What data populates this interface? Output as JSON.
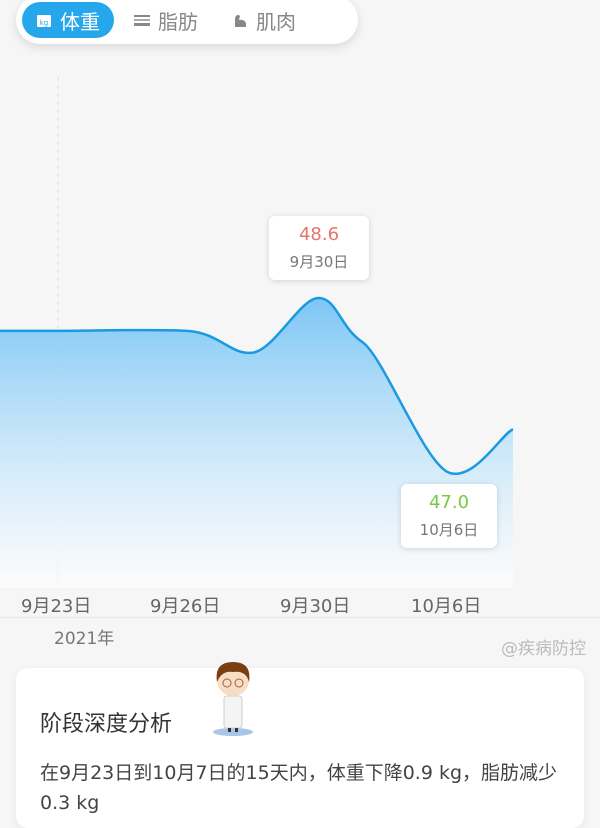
{
  "tabs": [
    {
      "label": "体重",
      "icon": "weight-kg-icon",
      "active": true
    },
    {
      "label": "脂肪",
      "icon": "fat-icon",
      "active": false
    },
    {
      "label": "肌肉",
      "icon": "muscle-icon",
      "active": false
    }
  ],
  "colors": {
    "accent": "#26a7ec",
    "line": "#1a9ae0",
    "high": "#e8736d",
    "low": "#7ac943"
  },
  "chart_data": {
    "type": "area",
    "x_ticks": [
      "9月23日",
      "9月26日",
      "9月30日",
      "10月6日"
    ],
    "year_label": "2021年",
    "points": [
      {
        "date": "9-23",
        "value": 48.3
      },
      {
        "date": "9-26",
        "value": 48.3
      },
      {
        "date": "9-28",
        "value": 48.1
      },
      {
        "date": "9-30",
        "value": 48.6
      },
      {
        "date": "10-2",
        "value": 48.2
      },
      {
        "date": "10-6",
        "value": 47.0
      },
      {
        "date": "10-7",
        "value": 47.4
      }
    ],
    "max": {
      "value": "48.6",
      "date": "9月30日"
    },
    "min": {
      "value": "47.0",
      "date": "10月6日"
    }
  },
  "card": {
    "title": "阶段深度分析",
    "text": "在9月23日到10月7日的15天内，体重下降0.9 kg，脂肪减少0.3 kg"
  },
  "watermark": "@疾病防控"
}
